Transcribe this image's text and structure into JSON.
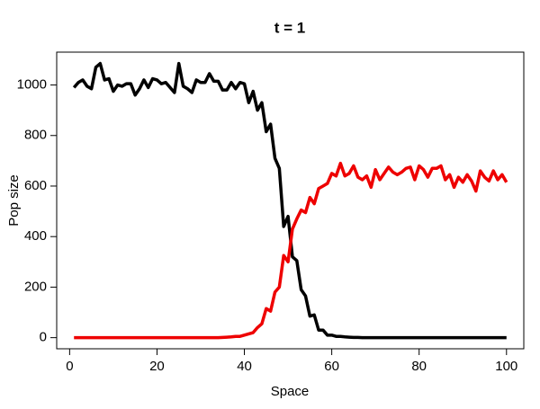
{
  "chart_data": {
    "type": "line",
    "title": "t = 1",
    "x_label": "Space",
    "y_label": "Pop size",
    "x": [
      1,
      2,
      3,
      4,
      5,
      6,
      7,
      8,
      9,
      10,
      11,
      12,
      13,
      14,
      15,
      16,
      17,
      18,
      19,
      20,
      21,
      22,
      23,
      24,
      25,
      26,
      27,
      28,
      29,
      30,
      31,
      32,
      33,
      34,
      35,
      36,
      37,
      38,
      39,
      40,
      41,
      42,
      43,
      44,
      45,
      46,
      47,
      48,
      49,
      50,
      51,
      52,
      53,
      54,
      55,
      56,
      57,
      58,
      59,
      60,
      61,
      62,
      63,
      64,
      65,
      66,
      67,
      68,
      69,
      70,
      71,
      72,
      73,
      74,
      75,
      76,
      77,
      78,
      79,
      80,
      81,
      82,
      83,
      84,
      85,
      86,
      87,
      88,
      89,
      90,
      91,
      92,
      93,
      94,
      95,
      96,
      97,
      98,
      99,
      100
    ],
    "series": [
      {
        "color": "#000000",
        "values": [
          990,
          1010,
          1020,
          995,
          985,
          1070,
          1085,
          1020,
          1025,
          975,
          1000,
          995,
          1005,
          1005,
          960,
          985,
          1020,
          990,
          1025,
          1020,
          1005,
          1010,
          990,
          970,
          1085,
          995,
          985,
          970,
          1020,
          1010,
          1010,
          1045,
          1015,
          1015,
          980,
          980,
          1010,
          985,
          1010,
          1005,
          930,
          975,
          900,
          930,
          815,
          845,
          710,
          670,
          440,
          480,
          320,
          305,
          190,
          165,
          85,
          90,
          30,
          30,
          10,
          10,
          5,
          5,
          3,
          2,
          1,
          1,
          0,
          0,
          0,
          0,
          0,
          0,
          0,
          0,
          0,
          0,
          0,
          0,
          0,
          0,
          0,
          0,
          0,
          0,
          0,
          0,
          0,
          0,
          0,
          0,
          0,
          0,
          0,
          0,
          0,
          0,
          0,
          0,
          0,
          0
        ]
      },
      {
        "color": "#ee0000",
        "values": [
          0,
          0,
          0,
          0,
          0,
          0,
          0,
          0,
          0,
          0,
          0,
          0,
          0,
          0,
          0,
          0,
          0,
          0,
          0,
          0,
          0,
          0,
          0,
          0,
          0,
          0,
          0,
          0,
          0,
          0,
          0,
          0,
          0,
          0,
          1,
          2,
          3,
          5,
          5,
          10,
          15,
          20,
          40,
          55,
          115,
          105,
          180,
          200,
          325,
          300,
          430,
          470,
          505,
          495,
          555,
          530,
          590,
          600,
          610,
          650,
          640,
          690,
          640,
          650,
          680,
          635,
          625,
          640,
          595,
          665,
          625,
          650,
          675,
          655,
          645,
          655,
          670,
          675,
          625,
          680,
          665,
          635,
          670,
          670,
          680,
          625,
          645,
          595,
          635,
          615,
          645,
          620,
          580,
          660,
          635,
          620,
          660,
          625,
          645,
          615
        ]
      }
    ],
    "xlim": [
      -2.96,
      103.96
    ],
    "xticks": [
      0,
      20,
      40,
      60,
      80,
      100
    ],
    "ylim": [
      -44,
      1130
    ],
    "yticks": [
      0,
      200,
      400,
      600,
      800,
      1000
    ]
  }
}
